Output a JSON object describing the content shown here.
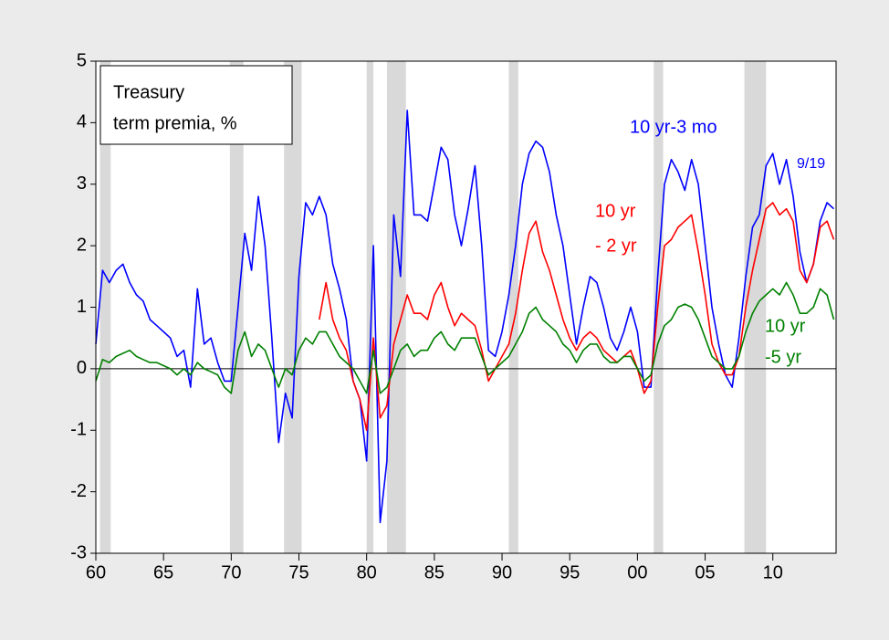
{
  "chart_data": {
    "type": "line",
    "title_box": [
      "Treasury",
      "term premia, %"
    ],
    "annotations": [
      {
        "text": "10 yr-3 mo",
        "color": "#0000ff"
      },
      {
        "text": "9/19",
        "color": "#0000ff"
      },
      {
        "text": "10 yr",
        "color": "#ff0000"
      },
      {
        "text": "- 2 yr",
        "color": "#ff0000"
      },
      {
        "text": "10 yr",
        "color": "#008000"
      },
      {
        "text": "-5 yr",
        "color": "#008000"
      }
    ],
    "x": [
      1960,
      1960.5,
      1961,
      1961.5,
      1962,
      1962.5,
      1963,
      1963.5,
      1964,
      1964.5,
      1965,
      1965.5,
      1966,
      1966.5,
      1967,
      1967.5,
      1968,
      1968.5,
      1969,
      1969.5,
      1970,
      1970.5,
      1971,
      1971.5,
      1972,
      1972.5,
      1973,
      1973.5,
      1974,
      1974.5,
      1975,
      1975.5,
      1976,
      1976.5,
      1977,
      1977.5,
      1978,
      1978.5,
      1979,
      1979.5,
      1980,
      1980.5,
      1981,
      1981.5,
      1982,
      1982.5,
      1983,
      1983.5,
      1984,
      1984.5,
      1985,
      1985.5,
      1986,
      1986.5,
      1987,
      1987.5,
      1988,
      1988.5,
      1989,
      1989.5,
      1990,
      1990.5,
      1991,
      1991.5,
      1992,
      1992.5,
      1993,
      1993.5,
      1994,
      1994.5,
      1995,
      1995.5,
      1996,
      1996.5,
      1997,
      1997.5,
      1998,
      1998.5,
      1999,
      1999.5,
      2000,
      2000.5,
      2001,
      2001.5,
      2002,
      2002.5,
      2003,
      2003.5,
      2004,
      2004.5,
      2005,
      2005.5,
      2006,
      2006.5,
      2007,
      2007.5,
      2008,
      2008.5,
      2009,
      2009.5,
      2010,
      2010.5,
      2011,
      2011.5,
      2012,
      2012.5,
      2013,
      2013.5,
      2014,
      2014.5
    ],
    "series": [
      {
        "name": "10 yr-3 mo",
        "color": "#0000ff",
        "values": [
          0.4,
          1.6,
          1.4,
          1.6,
          1.7,
          1.4,
          1.2,
          1.1,
          0.8,
          0.7,
          0.6,
          0.5,
          0.2,
          0.3,
          -0.3,
          1.3,
          0.4,
          0.5,
          0.1,
          -0.2,
          -0.2,
          1.0,
          2.2,
          1.6,
          2.8,
          2.0,
          0.5,
          -1.2,
          -0.4,
          -0.8,
          1.5,
          2.7,
          2.5,
          2.8,
          2.5,
          1.7,
          1.3,
          0.8,
          -0.2,
          -0.5,
          -1.5,
          2.0,
          -2.5,
          -1.5,
          2.5,
          1.5,
          4.2,
          2.5,
          2.5,
          2.4,
          3.0,
          3.6,
          3.4,
          2.5,
          2.0,
          2.6,
          3.3,
          2.0,
          0.3,
          0.2,
          0.6,
          1.2,
          2.0,
          3.0,
          3.5,
          3.7,
          3.6,
          3.2,
          2.5,
          2.0,
          1.2,
          0.4,
          1.0,
          1.5,
          1.4,
          1.0,
          0.5,
          0.3,
          0.6,
          1.0,
          0.6,
          -0.3,
          -0.3,
          1.5,
          3.0,
          3.4,
          3.2,
          2.9,
          3.4,
          3.0,
          2.0,
          1.0,
          0.4,
          -0.1,
          -0.3,
          0.5,
          1.5,
          2.3,
          2.5,
          3.3,
          3.5,
          3.0,
          3.4,
          2.8,
          1.9,
          1.4,
          1.7,
          2.4,
          2.7,
          2.6
        ]
      },
      {
        "name": "10 yr - 2 yr",
        "color": "#ff0000",
        "values": [
          null,
          null,
          null,
          null,
          null,
          null,
          null,
          null,
          null,
          null,
          null,
          null,
          null,
          null,
          null,
          null,
          null,
          null,
          null,
          null,
          null,
          null,
          null,
          null,
          null,
          null,
          null,
          null,
          null,
          null,
          null,
          null,
          null,
          0.8,
          1.4,
          0.8,
          0.5,
          0.3,
          -0.2,
          -0.5,
          -1.0,
          0.5,
          -0.8,
          -0.6,
          0.4,
          0.8,
          1.2,
          0.9,
          0.9,
          0.8,
          1.2,
          1.4,
          1.0,
          0.7,
          0.9,
          0.8,
          0.7,
          0.3,
          -0.2,
          0.0,
          0.2,
          0.4,
          0.9,
          1.6,
          2.2,
          2.4,
          1.9,
          1.6,
          1.2,
          0.8,
          0.5,
          0.3,
          0.5,
          0.6,
          0.5,
          0.3,
          0.2,
          0.1,
          0.2,
          0.3,
          0.0,
          -0.4,
          -0.2,
          1.0,
          2.0,
          2.1,
          2.3,
          2.4,
          2.5,
          1.9,
          1.2,
          0.4,
          0.1,
          -0.1,
          -0.1,
          0.2,
          1.0,
          1.6,
          2.1,
          2.6,
          2.7,
          2.5,
          2.6,
          2.4,
          1.6,
          1.4,
          1.7,
          2.3,
          2.4,
          2.1
        ]
      },
      {
        "name": "10 yr -5 yr",
        "color": "#008000",
        "values": [
          -0.2,
          0.15,
          0.1,
          0.2,
          0.25,
          0.3,
          0.2,
          0.15,
          0.1,
          0.1,
          0.05,
          0.0,
          -0.1,
          0.0,
          -0.1,
          0.1,
          0.0,
          -0.05,
          -0.1,
          -0.3,
          -0.4,
          0.3,
          0.6,
          0.2,
          0.4,
          0.3,
          0.0,
          -0.3,
          0.0,
          -0.1,
          0.3,
          0.5,
          0.4,
          0.6,
          0.6,
          0.4,
          0.2,
          0.1,
          0.0,
          -0.2,
          -0.4,
          0.3,
          -0.4,
          -0.3,
          0.0,
          0.3,
          0.4,
          0.2,
          0.3,
          0.3,
          0.5,
          0.6,
          0.4,
          0.3,
          0.5,
          0.5,
          0.5,
          0.2,
          -0.1,
          0.0,
          0.1,
          0.2,
          0.4,
          0.6,
          0.9,
          1.0,
          0.8,
          0.7,
          0.6,
          0.4,
          0.3,
          0.1,
          0.3,
          0.4,
          0.4,
          0.2,
          0.1,
          0.1,
          0.2,
          0.2,
          0.0,
          -0.2,
          -0.1,
          0.4,
          0.7,
          0.8,
          1.0,
          1.05,
          1.0,
          0.8,
          0.5,
          0.2,
          0.1,
          0.0,
          0.0,
          0.2,
          0.6,
          0.9,
          1.1,
          1.2,
          1.3,
          1.2,
          1.4,
          1.2,
          0.9,
          0.9,
          1.0,
          1.3,
          1.2,
          0.8
        ]
      }
    ],
    "recessions": [
      [
        1960.3,
        1961.1
      ],
      [
        1969.9,
        1970.9
      ],
      [
        1973.9,
        1975.2
      ],
      [
        1980.0,
        1980.5
      ],
      [
        1981.5,
        1982.9
      ],
      [
        1990.5,
        1991.2
      ],
      [
        2001.2,
        2001.9
      ],
      [
        2007.9,
        2009.5
      ]
    ],
    "recession_color": "#d9d9d9",
    "hline": 0,
    "xlim": [
      1960,
      2014.67
    ],
    "ylim": [
      -3,
      5
    ],
    "xticks": [
      {
        "value": 1960,
        "label": "60"
      },
      {
        "value": 1965,
        "label": "65"
      },
      {
        "value": 1970,
        "label": "70"
      },
      {
        "value": 1975,
        "label": "75"
      },
      {
        "value": 1980,
        "label": "80"
      },
      {
        "value": 1985,
        "label": "85"
      },
      {
        "value": 1990,
        "label": "90"
      },
      {
        "value": 1995,
        "label": "95"
      },
      {
        "value": 2000,
        "label": "00"
      },
      {
        "value": 2005,
        "label": "05"
      },
      {
        "value": 2010,
        "label": "10"
      }
    ],
    "yticks": [
      -3,
      -2,
      -1,
      0,
      1,
      2,
      3,
      4,
      5
    ]
  }
}
